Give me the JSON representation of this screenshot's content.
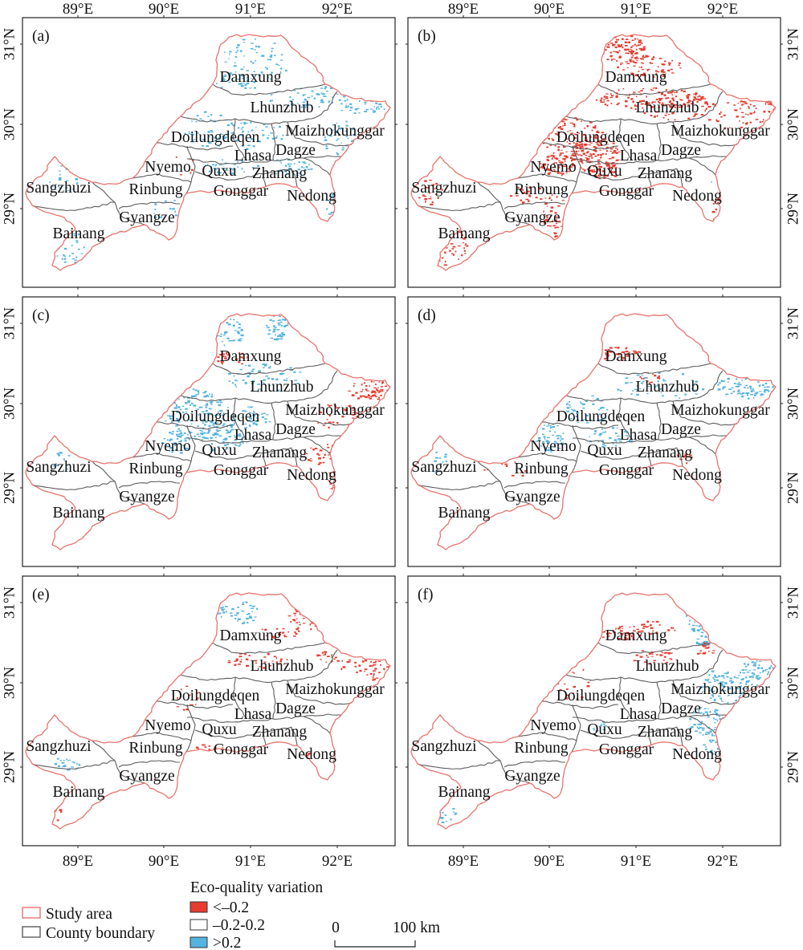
{
  "figure": {
    "panels": [
      {
        "label": "(a)"
      },
      {
        "label": "(b)"
      },
      {
        "label": "(c)"
      },
      {
        "label": "(d)"
      },
      {
        "label": "(e)"
      },
      {
        "label": "(f)"
      }
    ],
    "counties": [
      "Damxung",
      "Lhunzhub",
      "Maizhokunggar",
      "Doilungdeqen",
      "Lhasa",
      "Dagze",
      "Nyemo",
      "Quxu",
      "Zhanang",
      "Sangzhuzi",
      "Rinbung",
      "Gonggar",
      "Nedong",
      "Gyangze",
      "Bainang"
    ],
    "longitude_labels": [
      "89°E",
      "90°E",
      "91°E",
      "92°E"
    ],
    "latitude_labels": [
      "31°N",
      "30°N",
      "29°N"
    ]
  },
  "legend": {
    "boundaries": [
      {
        "label": "Study area",
        "color": "#e8736c"
      },
      {
        "label": "County boundary",
        "color": "#5c5c5c"
      }
    ],
    "variation_title": "Eco-quality variation",
    "variation_classes": [
      {
        "label": "<–0.2",
        "color": "#e63b2e"
      },
      {
        "label": "–0.2-0.2",
        "color": "#ffffff"
      },
      {
        "label": ">0.2",
        "color": "#55b3e0"
      }
    ]
  },
  "scale_bar": {
    "start_label": "0",
    "end_label": "100 km"
  }
}
